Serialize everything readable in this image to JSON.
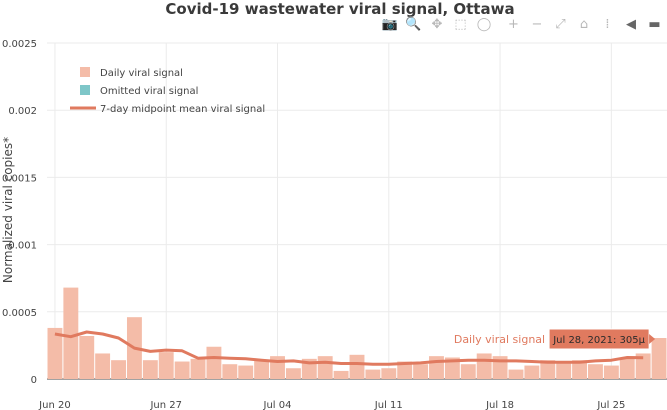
{
  "chart_data": {
    "type": "bar",
    "title": "Covid-19 wastewater viral signal, Ottawa",
    "ylabel": "Normalized viral copies*",
    "xlabel": "",
    "ylim": [
      0,
      0.0025
    ],
    "yticks": [
      "0",
      "0.0005",
      "0.001",
      "0.0015",
      "0.002",
      "0.0025"
    ],
    "ytick_values": [
      0,
      0.0005,
      0.001,
      0.0015,
      0.002,
      0.0025
    ],
    "xticks": [
      {
        "label": "Jun 20",
        "day": 0
      },
      {
        "label": "Jun 27",
        "day": 7
      },
      {
        "label": "Jul 04",
        "day": 14
      },
      {
        "label": "Jul 11",
        "day": 21
      },
      {
        "label": "Jul 18",
        "day": 28
      },
      {
        "label": "Jul 25",
        "day": 35
      }
    ],
    "grid": true,
    "legend_position": "top-left",
    "legend": [
      {
        "label": "Daily viral signal",
        "kind": "bar",
        "color": "#f4bca8"
      },
      {
        "label": "Omitted viral signal",
        "kind": "bar",
        "color": "#7ec6c8"
      },
      {
        "label": "7-day midpoint mean viral signal",
        "kind": "line",
        "color": "#e07a5f"
      }
    ],
    "series": [
      {
        "name": "Daily viral signal",
        "color": "#f4bca8",
        "start_date": "Jun 20",
        "values": [
          0.00038,
          0.00068,
          0.00032,
          0.00019,
          0.00014,
          0.00046,
          0.00014,
          0.0002,
          0.00013,
          0.00015,
          0.00024,
          0.00011,
          0.0001,
          0.00014,
          0.00017,
          8e-05,
          0.00015,
          0.00017,
          6e-05,
          0.00018,
          7e-05,
          8e-05,
          0.00013,
          0.00011,
          0.00017,
          0.00016,
          0.00011,
          0.00019,
          0.00017,
          7e-05,
          0.0001,
          0.00014,
          0.00012,
          0.00014,
          0.00011,
          0.0001,
          0.00015,
          0.00019,
          0.000305
        ]
      },
      {
        "name": "7-day midpoint mean viral signal",
        "color": "#e07a5f",
        "start_date": "Jun 20",
        "values": [
          0.000335,
          0.000315,
          0.00035,
          0.000335,
          0.000305,
          0.00023,
          0.000205,
          0.000215,
          0.00021,
          0.000155,
          0.00016,
          0.000155,
          0.00015,
          0.00014,
          0.00013,
          0.000135,
          0.00012,
          0.000125,
          0.000115,
          0.000115,
          0.00011,
          0.00011,
          0.000115,
          0.00012,
          0.00013,
          0.000135,
          0.00014,
          0.00014,
          0.000135,
          0.000135,
          0.00013,
          0.000125,
          0.000125,
          0.000125,
          0.000135,
          0.00014,
          0.00016,
          0.000158
        ]
      }
    ],
    "hover": {
      "series_label": "Daily viral signal",
      "tooltip": "Jul 28, 2021: 305μ",
      "day": 38
    }
  },
  "modebar": {
    "icons": [
      {
        "name": "camera-icon",
        "glyph": "📷"
      },
      {
        "name": "zoom-icon",
        "glyph": "🔍"
      },
      {
        "name": "pan-icon",
        "glyph": "✥"
      },
      {
        "name": "box-select-icon",
        "glyph": "⬚"
      },
      {
        "name": "lasso-select-icon",
        "glyph": "◯"
      },
      {
        "name": "zoom-in-icon",
        "glyph": "+"
      },
      {
        "name": "zoom-out-icon",
        "glyph": "−"
      },
      {
        "name": "autoscale-icon",
        "glyph": "⤢"
      },
      {
        "name": "reset-axes-icon",
        "glyph": "⌂"
      },
      {
        "name": "spike-lines-icon",
        "glyph": "⁞"
      },
      {
        "name": "hover-closest-icon",
        "glyph": "◀"
      },
      {
        "name": "hover-compare-icon",
        "glyph": "▬"
      }
    ]
  }
}
